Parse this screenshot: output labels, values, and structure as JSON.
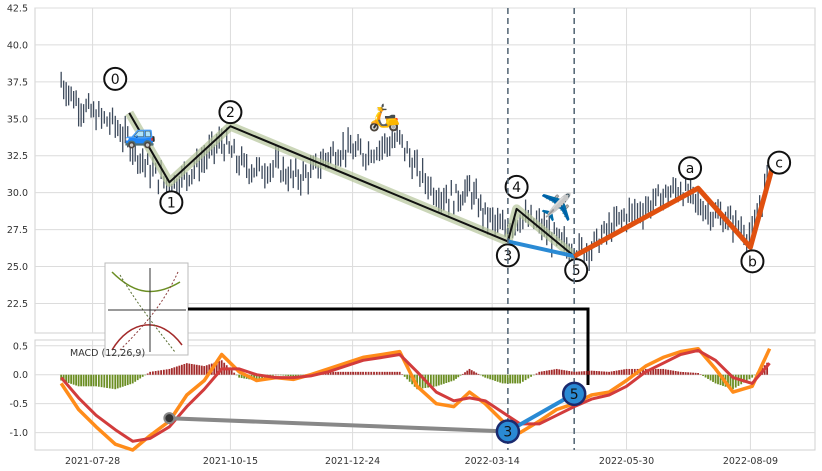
{
  "chart_data": [
    {
      "type": "line",
      "panel": "price",
      "ylim": [
        20.5,
        42.5
      ],
      "yticks": [
        "22.5",
        "25.0",
        "27.5",
        "30.0",
        "32.5",
        "35.0",
        "37.5",
        "40.0",
        "42.5"
      ],
      "xticks": [
        "2021-07-28",
        "2021-10-15",
        "2021-12-24",
        "2022-03-14",
        "2022-05-30",
        "2022-08-09"
      ],
      "grid": true,
      "series": [
        {
          "key": "price",
          "style": "candles",
          "x": [
            "2021-07-10",
            "2021-07-20",
            "2021-07-30",
            "2021-08-10",
            "2021-08-20",
            "2021-08-30",
            "2021-09-10",
            "2021-09-20",
            "2021-09-30",
            "2021-10-10",
            "2021-10-20",
            "2021-10-30",
            "2021-11-10",
            "2021-11-20",
            "2021-11-30",
            "2021-12-10",
            "2021-12-20",
            "2021-12-30",
            "2022-01-10",
            "2022-01-20",
            "2022-01-30",
            "2022-02-10",
            "2022-02-20",
            "2022-03-01",
            "2022-03-10",
            "2022-03-20",
            "2022-03-30",
            "2022-04-10",
            "2022-04-20",
            "2022-04-30",
            "2022-05-10",
            "2022-05-20",
            "2022-05-30",
            "2022-06-10",
            "2022-06-20",
            "2022-06-30",
            "2022-07-10",
            "2022-07-20",
            "2022-07-30",
            "2022-08-10",
            "2022-08-20"
          ],
          "values": [
            37.5,
            36.0,
            35.2,
            34.6,
            33.0,
            31.5,
            30.5,
            31.2,
            32.3,
            33.5,
            32.0,
            31.5,
            31.8,
            31.0,
            31.3,
            32.5,
            33.0,
            32.6,
            33.2,
            33.6,
            31.5,
            30.0,
            29.6,
            30.2,
            28.5,
            27.5,
            28.3,
            27.8,
            26.8,
            26.0,
            26.3,
            27.5,
            28.5,
            29.0,
            29.8,
            30.3,
            29.2,
            28.5,
            28.0,
            27.0,
            31.5
          ]
        },
        {
          "key": "wave-motive",
          "points": [
            [
              "2021-08-18",
              35.4
            ],
            [
              "2021-09-10",
              30.7
            ],
            [
              "2021-10-15",
              34.5
            ],
            [
              "2022-03-23",
              26.7
            ],
            [
              "2022-03-28",
              28.9
            ],
            [
              "2022-04-30",
              25.7
            ]
          ]
        },
        {
          "key": "wave-blue",
          "points": [
            [
              "2022-03-23",
              26.7
            ],
            [
              "2022-04-30",
              25.7
            ]
          ]
        },
        {
          "key": "wave-correction",
          "points": [
            [
              "2022-04-30",
              25.7
            ],
            [
              "2022-07-10",
              30.3
            ],
            [
              "2022-08-09",
              26.3
            ],
            [
              "2022-08-22",
              31.9
            ]
          ]
        }
      ],
      "annotations": [
        "0",
        "1",
        "2",
        "3",
        "4",
        "5",
        "a",
        "b",
        "c"
      ]
    },
    {
      "type": "line",
      "panel": "macd",
      "ylim": [
        -1.3,
        0.6
      ],
      "yticks": [
        "-1.0",
        "-0.5",
        "0.0",
        "0.5"
      ],
      "legend": "MACD (12,26,9)",
      "series": [
        {
          "key": "macd",
          "color": "#ff8c1a",
          "x": [
            "2021-07-10",
            "2021-07-20",
            "2021-07-30",
            "2021-08-10",
            "2021-08-20",
            "2021-08-30",
            "2021-09-10",
            "2021-09-20",
            "2021-09-30",
            "2021-10-10",
            "2021-10-20",
            "2021-10-30",
            "2021-11-10",
            "2021-11-20",
            "2021-11-30",
            "2021-12-10",
            "2021-12-20",
            "2021-12-30",
            "2022-01-10",
            "2022-01-20",
            "2022-01-30",
            "2022-02-10",
            "2022-02-20",
            "2022-03-01",
            "2022-03-10",
            "2022-03-20",
            "2022-03-30",
            "2022-04-10",
            "2022-04-20",
            "2022-04-30",
            "2022-05-10",
            "2022-05-20",
            "2022-05-30",
            "2022-06-10",
            "2022-06-20",
            "2022-06-30",
            "2022-07-10",
            "2022-07-20",
            "2022-07-30",
            "2022-08-10",
            "2022-08-20"
          ],
          "values": [
            -0.15,
            -0.6,
            -0.9,
            -1.2,
            -1.3,
            -1.05,
            -0.8,
            -0.35,
            -0.1,
            0.35,
            0.05,
            -0.1,
            -0.05,
            -0.08,
            0.0,
            0.1,
            0.2,
            0.3,
            0.35,
            0.4,
            -0.2,
            -0.5,
            -0.55,
            -0.3,
            -0.5,
            -0.8,
            -1.0,
            -0.8,
            -0.6,
            -0.5,
            -0.35,
            -0.3,
            -0.1,
            0.15,
            0.3,
            0.4,
            0.45,
            0.1,
            -0.3,
            -0.2,
            0.45
          ]
        },
        {
          "key": "signal",
          "color": "#d23c3c",
          "x": [
            "2021-07-10",
            "2021-07-20",
            "2021-07-30",
            "2021-08-10",
            "2021-08-20",
            "2021-08-30",
            "2021-09-10",
            "2021-09-20",
            "2021-09-30",
            "2021-10-10",
            "2021-10-20",
            "2021-10-30",
            "2021-11-10",
            "2021-11-20",
            "2021-11-30",
            "2021-12-10",
            "2021-12-20",
            "2021-12-30",
            "2022-01-10",
            "2022-01-20",
            "2022-01-30",
            "2022-02-10",
            "2022-02-20",
            "2022-03-01",
            "2022-03-10",
            "2022-03-20",
            "2022-03-30",
            "2022-04-10",
            "2022-04-20",
            "2022-04-30",
            "2022-05-10",
            "2022-05-20",
            "2022-05-30",
            "2022-06-10",
            "2022-06-20",
            "2022-06-30",
            "2022-07-10",
            "2022-07-20",
            "2022-07-30",
            "2022-08-10",
            "2022-08-20"
          ],
          "values": [
            -0.05,
            -0.4,
            -0.7,
            -0.95,
            -1.15,
            -1.1,
            -0.9,
            -0.55,
            -0.25,
            0.1,
            0.1,
            0.0,
            -0.05,
            -0.05,
            -0.02,
            0.05,
            0.15,
            0.25,
            0.3,
            0.35,
            0.05,
            -0.3,
            -0.45,
            -0.4,
            -0.45,
            -0.65,
            -0.85,
            -0.85,
            -0.7,
            -0.55,
            -0.42,
            -0.35,
            -0.2,
            0.05,
            0.2,
            0.35,
            0.42,
            0.25,
            -0.05,
            -0.15,
            0.2
          ]
        }
      ],
      "histogram": {
        "x": [
          "2021-07-10",
          "2021-07-20",
          "2021-07-30",
          "2021-08-10",
          "2021-08-20",
          "2021-08-30",
          "2021-09-10",
          "2021-09-20",
          "2021-09-30",
          "2021-10-10",
          "2021-10-20",
          "2021-10-30",
          "2021-11-10",
          "2021-11-20",
          "2021-11-30",
          "2021-12-10",
          "2021-12-20",
          "2021-12-30",
          "2022-01-10",
          "2022-01-20",
          "2022-01-30",
          "2022-02-10",
          "2022-02-20",
          "2022-03-01",
          "2022-03-10",
          "2022-03-20",
          "2022-03-30",
          "2022-04-10",
          "2022-04-20",
          "2022-04-30",
          "2022-05-10",
          "2022-05-20",
          "2022-05-30",
          "2022-06-10",
          "2022-06-20",
          "2022-06-30",
          "2022-07-10",
          "2022-07-20",
          "2022-07-30",
          "2022-08-10",
          "2022-08-20"
        ],
        "values": [
          -0.1,
          -0.2,
          -0.2,
          -0.25,
          -0.15,
          0.05,
          0.1,
          0.2,
          0.15,
          0.25,
          -0.05,
          -0.1,
          0.0,
          -0.03,
          0.02,
          0.05,
          0.05,
          0.05,
          0.05,
          0.05,
          -0.25,
          -0.2,
          -0.1,
          0.1,
          -0.05,
          -0.15,
          -0.15,
          0.05,
          0.1,
          0.05,
          0.07,
          0.05,
          0.1,
          0.1,
          0.1,
          0.05,
          0.03,
          -0.15,
          -0.25,
          -0.05,
          0.25
        ],
        "pos_color": "#a32a2a",
        "neg_color": "#6b8e23"
      },
      "markers": [
        {
          "label": "3",
          "date": "2022-03-23",
          "value": -0.98
        },
        {
          "label": "5",
          "date": "2022-04-30",
          "value": -0.33
        }
      ],
      "divergence_line": [
        [
          "2021-09-10",
          -0.75
        ],
        [
          "2022-03-23",
          -0.98
        ]
      ],
      "guide_lines": [
        "2022-03-23",
        "2022-04-30"
      ]
    }
  ]
}
